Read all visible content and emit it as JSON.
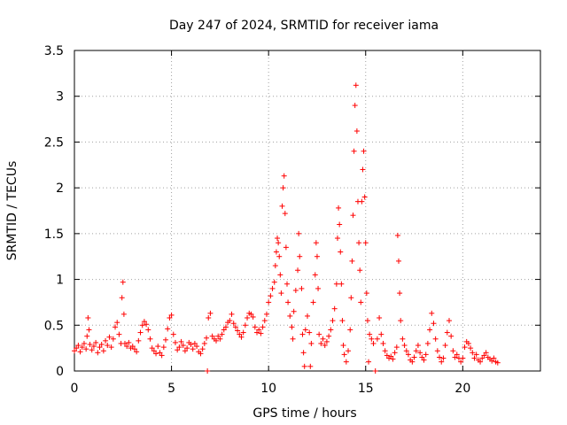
{
  "chart_data": {
    "type": "scatter",
    "title": "Day 247 of 2024, SRMTID for receiver iama",
    "xlabel": "GPS time / hours",
    "ylabel": "SRMTID / TECUs",
    "xlim": [
      0,
      24
    ],
    "ylim": [
      0,
      3.5
    ],
    "xticks": [
      0,
      5,
      10,
      15,
      20
    ],
    "yticks": [
      0,
      0.5,
      1,
      1.5,
      2,
      2.5,
      3,
      3.5
    ],
    "xtick_labels": [
      "0",
      "5",
      "10",
      "15",
      "20"
    ],
    "ytick_labels": [
      "0",
      "0.5",
      "1",
      "1.5",
      "2",
      "2.5",
      "3",
      "3.5"
    ],
    "grid": true,
    "marker": "plus",
    "series": [
      {
        "name": "SRMTID",
        "color": "#ff0000",
        "points": [
          [
            0.0,
            0.22
          ],
          [
            0.1,
            0.25
          ],
          [
            0.2,
            0.28
          ],
          [
            0.3,
            0.21
          ],
          [
            0.4,
            0.26
          ],
          [
            0.5,
            0.3
          ],
          [
            0.6,
            0.24
          ],
          [
            0.65,
            0.38
          ],
          [
            0.7,
            0.58
          ],
          [
            0.75,
            0.45
          ],
          [
            0.8,
            0.29
          ],
          [
            0.9,
            0.23
          ],
          [
            1.0,
            0.27
          ],
          [
            1.1,
            0.31
          ],
          [
            1.2,
            0.2
          ],
          [
            1.3,
            0.26
          ],
          [
            1.4,
            0.29
          ],
          [
            1.5,
            0.22
          ],
          [
            1.6,
            0.33
          ],
          [
            1.7,
            0.28
          ],
          [
            1.8,
            0.37
          ],
          [
            1.9,
            0.26
          ],
          [
            2.0,
            0.35
          ],
          [
            2.1,
            0.48
          ],
          [
            2.2,
            0.53
          ],
          [
            2.3,
            0.4
          ],
          [
            2.4,
            0.3
          ],
          [
            2.45,
            0.8
          ],
          [
            2.5,
            0.97
          ],
          [
            2.55,
            0.62
          ],
          [
            2.6,
            0.3
          ],
          [
            2.7,
            0.27
          ],
          [
            2.8,
            0.31
          ],
          [
            2.9,
            0.25
          ],
          [
            3.0,
            0.27
          ],
          [
            3.1,
            0.24
          ],
          [
            3.2,
            0.21
          ],
          [
            3.3,
            0.33
          ],
          [
            3.4,
            0.42
          ],
          [
            3.5,
            0.5
          ],
          [
            3.6,
            0.54
          ],
          [
            3.7,
            0.51
          ],
          [
            3.8,
            0.45
          ],
          [
            3.9,
            0.35
          ],
          [
            4.0,
            0.25
          ],
          [
            4.1,
            0.22
          ],
          [
            4.2,
            0.19
          ],
          [
            4.3,
            0.27
          ],
          [
            4.4,
            0.2
          ],
          [
            4.5,
            0.17
          ],
          [
            4.6,
            0.26
          ],
          [
            4.7,
            0.34
          ],
          [
            4.8,
            0.46
          ],
          [
            4.9,
            0.58
          ],
          [
            5.0,
            0.61
          ],
          [
            5.1,
            0.4
          ],
          [
            5.2,
            0.31
          ],
          [
            5.3,
            0.23
          ],
          [
            5.4,
            0.26
          ],
          [
            5.5,
            0.32
          ],
          [
            5.6,
            0.28
          ],
          [
            5.7,
            0.22
          ],
          [
            5.8,
            0.25
          ],
          [
            5.9,
            0.31
          ],
          [
            6.0,
            0.29
          ],
          [
            6.1,
            0.24
          ],
          [
            6.2,
            0.3
          ],
          [
            6.3,
            0.27
          ],
          [
            6.4,
            0.21
          ],
          [
            6.5,
            0.19
          ],
          [
            6.6,
            0.24
          ],
          [
            6.7,
            0.3
          ],
          [
            6.8,
            0.36
          ],
          [
            6.85,
            0.0
          ],
          [
            6.9,
            0.58
          ],
          [
            7.0,
            0.63
          ],
          [
            7.1,
            0.38
          ],
          [
            7.2,
            0.35
          ],
          [
            7.3,
            0.33
          ],
          [
            7.4,
            0.38
          ],
          [
            7.5,
            0.35
          ],
          [
            7.6,
            0.4
          ],
          [
            7.7,
            0.45
          ],
          [
            7.8,
            0.48
          ],
          [
            7.9,
            0.53
          ],
          [
            8.0,
            0.55
          ],
          [
            8.1,
            0.62
          ],
          [
            8.2,
            0.52
          ],
          [
            8.3,
            0.48
          ],
          [
            8.4,
            0.44
          ],
          [
            8.5,
            0.4
          ],
          [
            8.6,
            0.37
          ],
          [
            8.7,
            0.42
          ],
          [
            8.8,
            0.5
          ],
          [
            8.9,
            0.58
          ],
          [
            9.0,
            0.63
          ],
          [
            9.1,
            0.62
          ],
          [
            9.2,
            0.59
          ],
          [
            9.3,
            0.48
          ],
          [
            9.4,
            0.42
          ],
          [
            9.5,
            0.45
          ],
          [
            9.6,
            0.41
          ],
          [
            9.7,
            0.48
          ],
          [
            9.8,
            0.55
          ],
          [
            9.9,
            0.62
          ],
          [
            10.0,
            0.75
          ],
          [
            10.1,
            0.82
          ],
          [
            10.2,
            0.9
          ],
          [
            10.3,
            0.97
          ],
          [
            10.35,
            1.15
          ],
          [
            10.4,
            1.3
          ],
          [
            10.45,
            1.45
          ],
          [
            10.5,
            1.4
          ],
          [
            10.55,
            1.25
          ],
          [
            10.6,
            1.05
          ],
          [
            10.65,
            0.85
          ],
          [
            10.7,
            1.8
          ],
          [
            10.75,
            2.0
          ],
          [
            10.8,
            2.13
          ],
          [
            10.85,
            1.72
          ],
          [
            10.9,
            1.35
          ],
          [
            10.95,
            0.95
          ],
          [
            11.0,
            0.75
          ],
          [
            11.1,
            0.6
          ],
          [
            11.2,
            0.48
          ],
          [
            11.25,
            0.35
          ],
          [
            11.3,
            0.65
          ],
          [
            11.4,
            0.88
          ],
          [
            11.5,
            1.1
          ],
          [
            11.55,
            1.5
          ],
          [
            11.6,
            1.25
          ],
          [
            11.7,
            0.9
          ],
          [
            11.75,
            0.4
          ],
          [
            11.8,
            0.2
          ],
          [
            11.85,
            0.05
          ],
          [
            11.9,
            0.45
          ],
          [
            12.0,
            0.6
          ],
          [
            12.1,
            0.42
          ],
          [
            12.15,
            0.05
          ],
          [
            12.2,
            0.3
          ],
          [
            12.3,
            0.75
          ],
          [
            12.4,
            1.05
          ],
          [
            12.45,
            1.4
          ],
          [
            12.5,
            1.25
          ],
          [
            12.55,
            0.9
          ],
          [
            12.6,
            0.4
          ],
          [
            12.7,
            0.3
          ],
          [
            12.8,
            0.35
          ],
          [
            12.9,
            0.28
          ],
          [
            13.0,
            0.32
          ],
          [
            13.1,
            0.38
          ],
          [
            13.2,
            0.45
          ],
          [
            13.3,
            0.55
          ],
          [
            13.4,
            0.68
          ],
          [
            13.5,
            0.95
          ],
          [
            13.55,
            1.45
          ],
          [
            13.6,
            1.78
          ],
          [
            13.65,
            1.6
          ],
          [
            13.7,
            1.3
          ],
          [
            13.75,
            0.95
          ],
          [
            13.8,
            0.55
          ],
          [
            13.85,
            0.28
          ],
          [
            13.9,
            0.18
          ],
          [
            14.0,
            0.1
          ],
          [
            14.1,
            0.22
          ],
          [
            14.2,
            0.45
          ],
          [
            14.25,
            0.8
          ],
          [
            14.3,
            1.2
          ],
          [
            14.35,
            1.7
          ],
          [
            14.4,
            2.4
          ],
          [
            14.45,
            2.9
          ],
          [
            14.5,
            3.12
          ],
          [
            14.55,
            2.62
          ],
          [
            14.6,
            1.85
          ],
          [
            14.65,
            1.4
          ],
          [
            14.7,
            1.1
          ],
          [
            14.75,
            0.75
          ],
          [
            14.8,
            1.85
          ],
          [
            14.85,
            2.2
          ],
          [
            14.9,
            2.4
          ],
          [
            14.95,
            1.9
          ],
          [
            15.0,
            1.4
          ],
          [
            15.05,
            0.85
          ],
          [
            15.1,
            0.55
          ],
          [
            15.15,
            0.1
          ],
          [
            15.2,
            0.4
          ],
          [
            15.3,
            0.35
          ],
          [
            15.4,
            0.3
          ],
          [
            15.5,
            0.0
          ],
          [
            15.6,
            0.35
          ],
          [
            15.7,
            0.58
          ],
          [
            15.8,
            0.4
          ],
          [
            15.9,
            0.3
          ],
          [
            16.0,
            0.22
          ],
          [
            16.1,
            0.17
          ],
          [
            16.2,
            0.14
          ],
          [
            16.3,
            0.16
          ],
          [
            16.4,
            0.13
          ],
          [
            16.5,
            0.2
          ],
          [
            16.6,
            0.26
          ],
          [
            16.65,
            1.48
          ],
          [
            16.7,
            1.2
          ],
          [
            16.75,
            0.85
          ],
          [
            16.8,
            0.55
          ],
          [
            16.9,
            0.35
          ],
          [
            17.0,
            0.28
          ],
          [
            17.1,
            0.22
          ],
          [
            17.2,
            0.18
          ],
          [
            17.3,
            0.12
          ],
          [
            17.4,
            0.1
          ],
          [
            17.5,
            0.15
          ],
          [
            17.6,
            0.22
          ],
          [
            17.7,
            0.28
          ],
          [
            17.8,
            0.2
          ],
          [
            17.9,
            0.15
          ],
          [
            18.0,
            0.12
          ],
          [
            18.1,
            0.18
          ],
          [
            18.2,
            0.3
          ],
          [
            18.3,
            0.45
          ],
          [
            18.4,
            0.63
          ],
          [
            18.5,
            0.52
          ],
          [
            18.6,
            0.35
          ],
          [
            18.7,
            0.22
          ],
          [
            18.8,
            0.15
          ],
          [
            18.9,
            0.1
          ],
          [
            19.0,
            0.14
          ],
          [
            19.1,
            0.28
          ],
          [
            19.2,
            0.42
          ],
          [
            19.3,
            0.55
          ],
          [
            19.4,
            0.38
          ],
          [
            19.5,
            0.22
          ],
          [
            19.6,
            0.15
          ],
          [
            19.7,
            0.18
          ],
          [
            19.8,
            0.14
          ],
          [
            19.9,
            0.1
          ],
          [
            20.0,
            0.14
          ],
          [
            20.1,
            0.26
          ],
          [
            20.2,
            0.32
          ],
          [
            20.3,
            0.3
          ],
          [
            20.4,
            0.25
          ],
          [
            20.5,
            0.2
          ],
          [
            20.6,
            0.14
          ],
          [
            20.7,
            0.18
          ],
          [
            20.8,
            0.12
          ],
          [
            20.9,
            0.1
          ],
          [
            21.0,
            0.14
          ],
          [
            21.1,
            0.17
          ],
          [
            21.2,
            0.2
          ],
          [
            21.3,
            0.15
          ],
          [
            21.4,
            0.13
          ],
          [
            21.5,
            0.11
          ],
          [
            21.6,
            0.14
          ],
          [
            21.7,
            0.1
          ],
          [
            21.8,
            0.09
          ]
        ]
      }
    ]
  }
}
